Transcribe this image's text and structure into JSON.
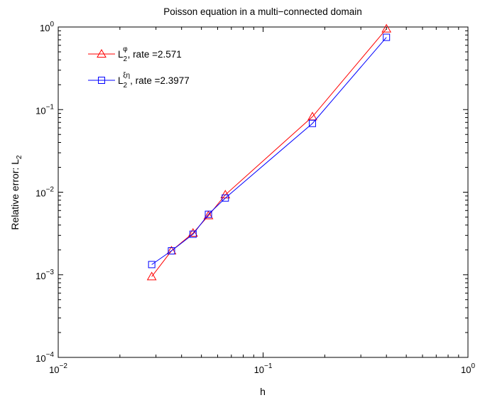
{
  "chart_data": {
    "type": "line",
    "title": "Poisson equation in a multi−connected domain",
    "xlabel": "h",
    "ylabel": "Relative error:  L",
    "ylabel_sub": "2",
    "xscale": "log",
    "yscale": "log",
    "xlim": [
      0.01,
      1
    ],
    "ylim": [
      0.0001,
      1
    ],
    "grid": false,
    "legend_position": "top-left",
    "x_ticks": [
      {
        "base": "10",
        "exp": "−2"
      },
      {
        "base": "10",
        "exp": "−1"
      },
      {
        "base": "10",
        "exp": "0"
      }
    ],
    "y_ticks": [
      {
        "base": "10",
        "exp": "−4"
      },
      {
        "base": "10",
        "exp": "−3"
      },
      {
        "base": "10",
        "exp": "−2"
      },
      {
        "base": "10",
        "exp": "−1"
      },
      {
        "base": "10",
        "exp": "0"
      }
    ],
    "series": [
      {
        "name": "L",
        "name_sub": "2",
        "name_sup": "φ",
        "name_rest": ",  rate =2.571",
        "color": "#ff0000",
        "marker": "triangle",
        "x": [
          0.0286,
          0.0357,
          0.0455,
          0.0541,
          0.0654,
          0.1741,
          0.4
        ],
        "y": [
          0.00095,
          0.00195,
          0.0032,
          0.0052,
          0.0093,
          0.082,
          0.95
        ]
      },
      {
        "name": "L",
        "name_sub": "2",
        "name_sup": "ξη",
        "name_rest": ", rate =2.3977",
        "color": "#0000ff",
        "marker": "square",
        "x": [
          0.0286,
          0.0357,
          0.0455,
          0.0541,
          0.0654,
          0.1741,
          0.4
        ],
        "y": [
          0.00133,
          0.00195,
          0.0031,
          0.0054,
          0.0085,
          0.068,
          0.75
        ]
      }
    ]
  }
}
